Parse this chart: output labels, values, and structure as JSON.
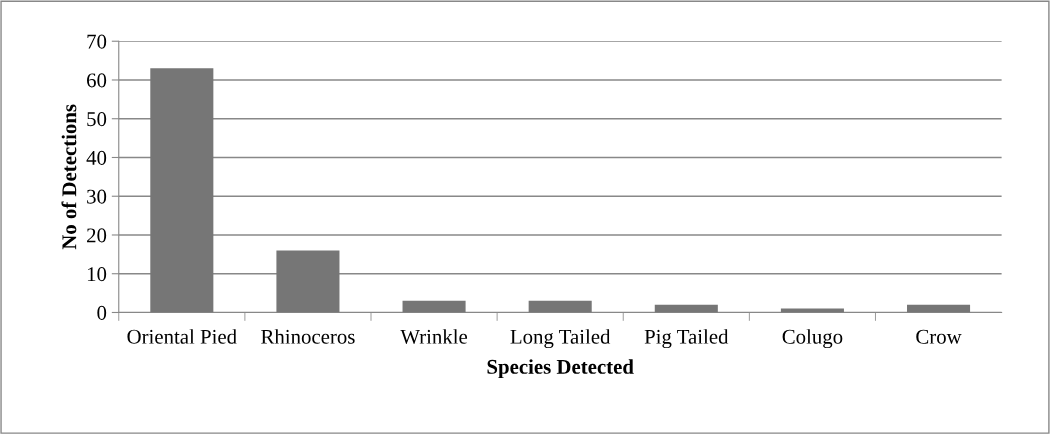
{
  "chart_data": {
    "type": "bar",
    "xlabel": "Species Detected",
    "ylabel": "No of Detections",
    "categories": [
      "Oriental Pied",
      "Rhinoceros",
      "Wrinkle",
      "Long Tailed",
      "Pig Tailed",
      "Colugo",
      "Crow"
    ],
    "values": [
      63,
      16,
      3,
      3,
      2,
      1,
      2
    ],
    "color": "#767676",
    "ylim": [
      0,
      70
    ],
    "yticks": [
      0,
      10,
      20,
      30,
      40,
      50,
      60,
      70
    ],
    "grid": "y"
  }
}
